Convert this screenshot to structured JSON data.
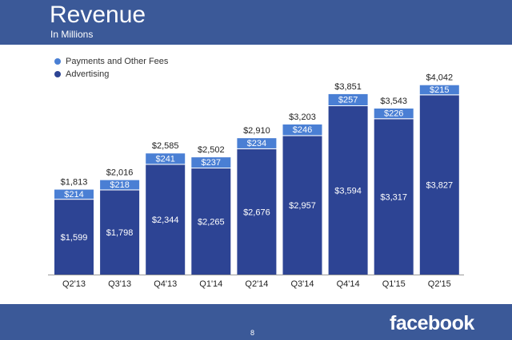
{
  "header": {
    "title": "Revenue",
    "subtitle": "In Millions"
  },
  "footer": {
    "page_number": "8",
    "logo_text": "facebook"
  },
  "colors": {
    "brand": "#3b5998",
    "advertising": "#2d4494",
    "payments": "#4a7fd4",
    "axis": "#999999"
  },
  "chart_data": {
    "type": "bar",
    "stacked": true,
    "title": "Revenue",
    "subtitle": "In Millions",
    "legend_position": "top-left",
    "categories": [
      "Q2'13",
      "Q3'13",
      "Q4'13",
      "Q1'14",
      "Q2'14",
      "Q3'14",
      "Q4'14",
      "Q1'15",
      "Q2'15"
    ],
    "series": [
      {
        "name": "Advertising",
        "values": [
          1599,
          1798,
          2344,
          2265,
          2676,
          2957,
          3594,
          3317,
          3827
        ],
        "labels": [
          "$1,599",
          "$1,798",
          "$2,344",
          "$2,265",
          "$2,676",
          "$2,957",
          "$3,594",
          "$3,317",
          "$3,827"
        ]
      },
      {
        "name": "Payments and Other Fees",
        "values": [
          214,
          218,
          241,
          237,
          234,
          246,
          257,
          226,
          215
        ],
        "labels": [
          "$214",
          "$218",
          "$241",
          "$237",
          "$234",
          "$246",
          "$257",
          "$226",
          "$215"
        ]
      }
    ],
    "totals": [
      1813,
      2016,
      2585,
      2502,
      2910,
      3203,
      3851,
      3543,
      4042
    ],
    "total_labels": [
      "$1,813",
      "$2,016",
      "$2,585",
      "$2,502",
      "$2,910",
      "$3,203",
      "$3,851",
      "$3,543",
      "$4,042"
    ],
    "ylim": [
      0,
      4300
    ]
  }
}
